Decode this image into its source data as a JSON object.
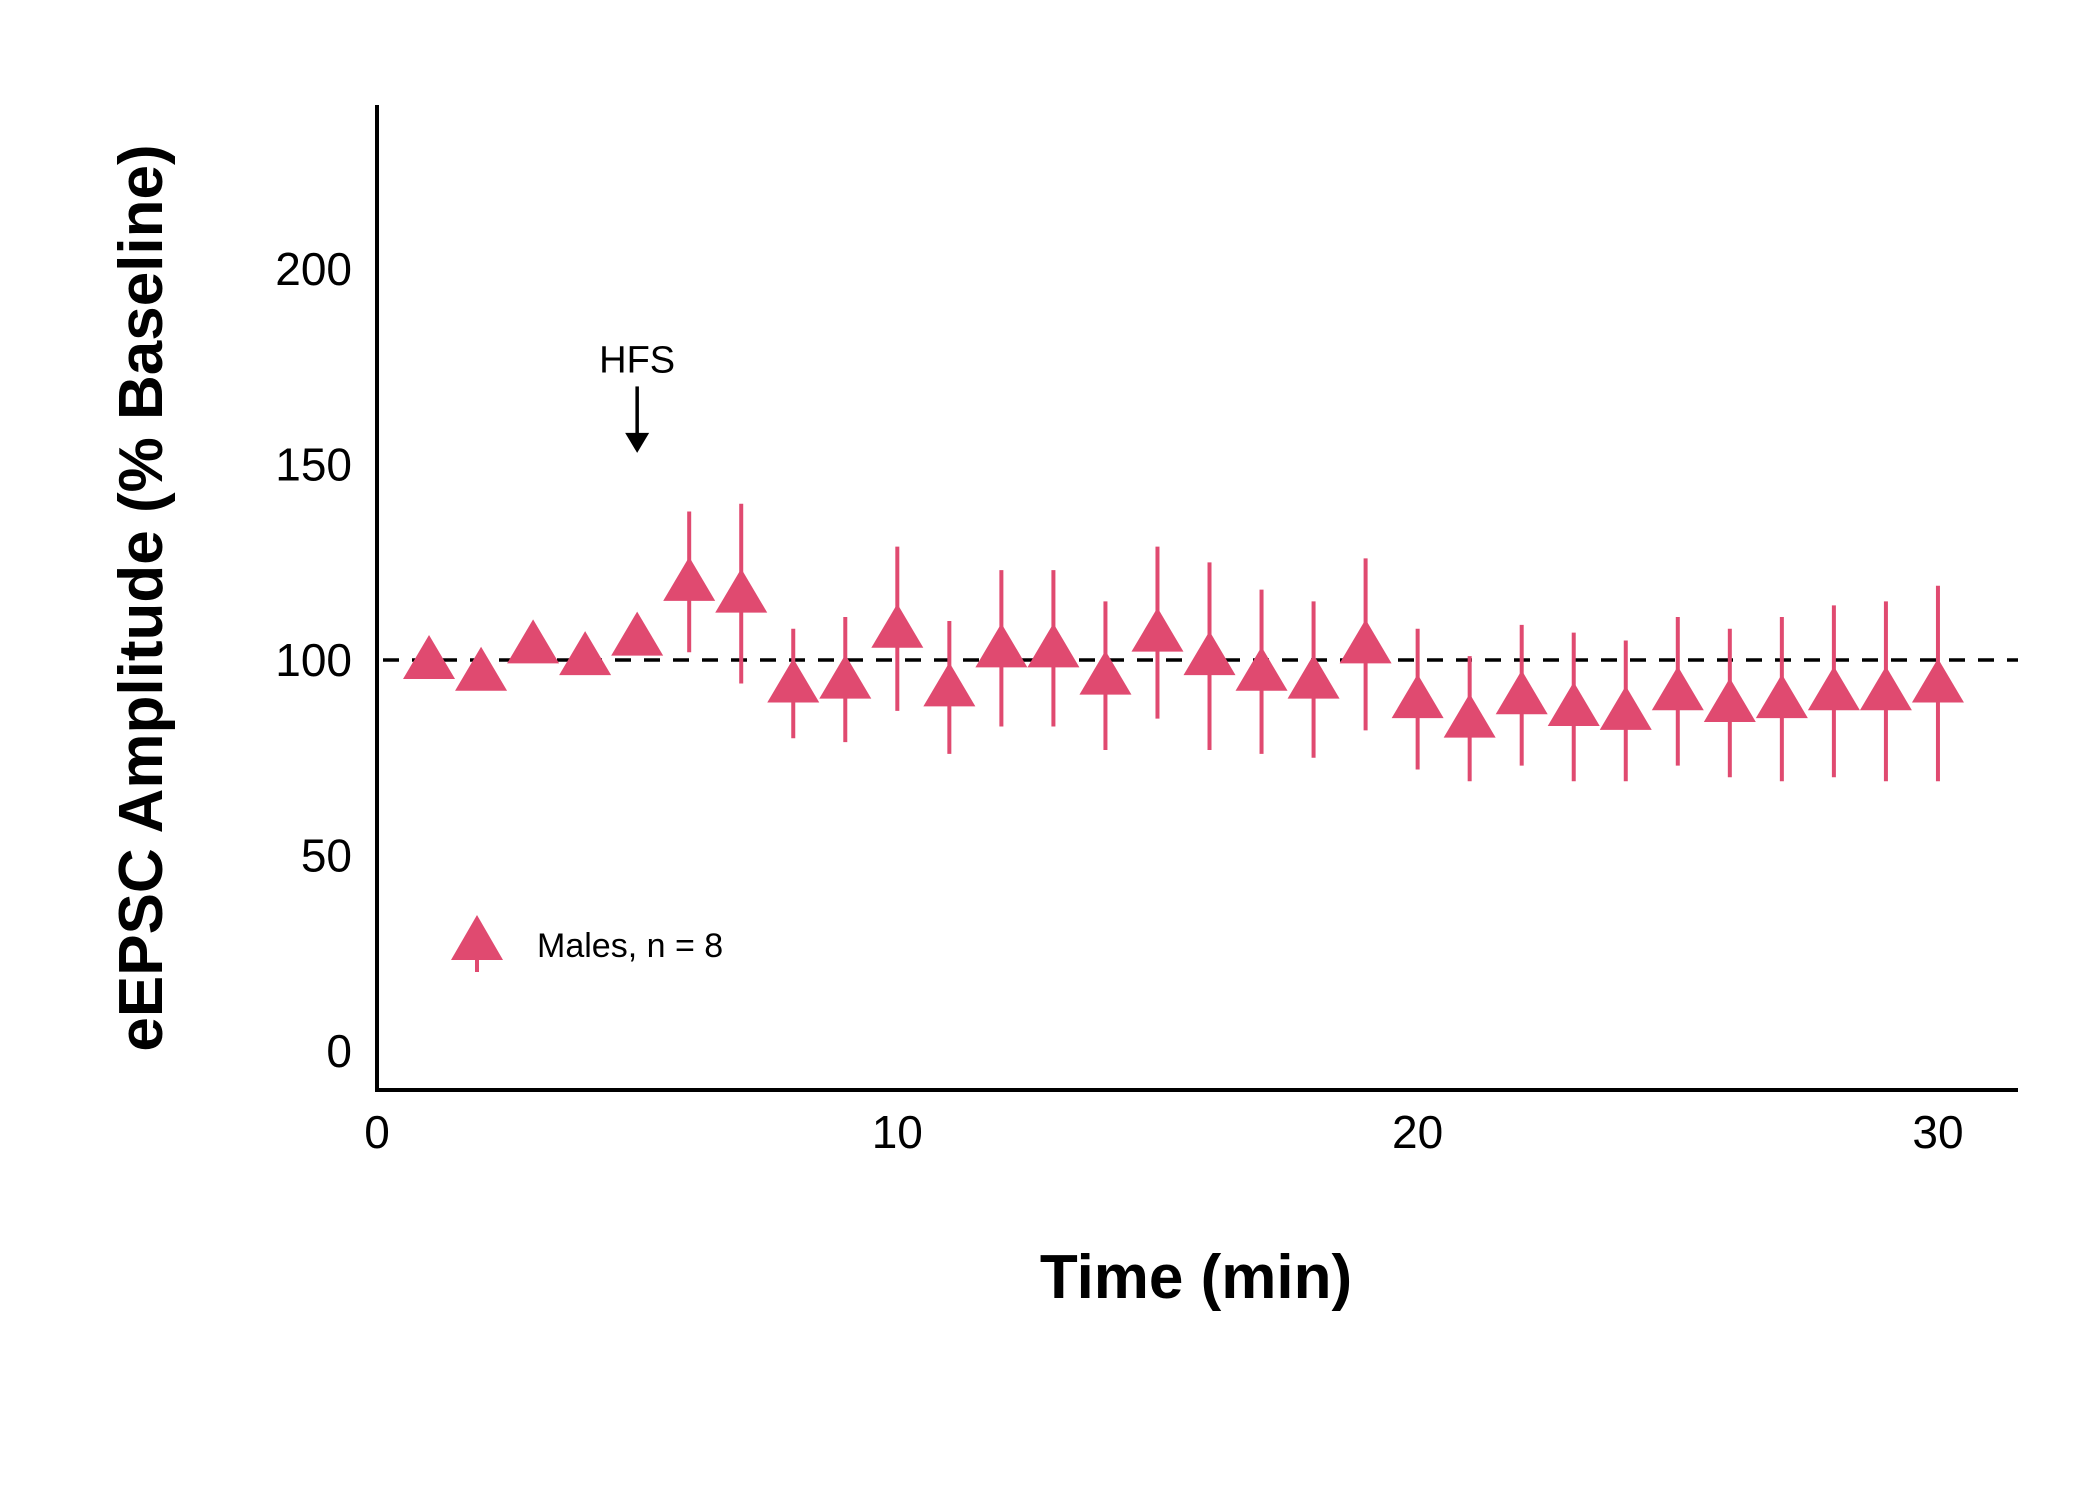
{
  "chart_data": {
    "type": "scatter",
    "title": "",
    "xlabel": "Time (min)",
    "ylabel": "eEPSC Amplitude (% Baseline)",
    "xlim": [
      0,
      31.5
    ],
    "ylim": [
      -10,
      242
    ],
    "xticks": [
      0,
      10,
      20,
      30
    ],
    "yticks": [
      0,
      50,
      100,
      150,
      200
    ],
    "grid": false,
    "legend_position": "bottom-left",
    "reference_line": {
      "y": 100,
      "style": "dashed",
      "color": "#000000"
    },
    "annotation": {
      "text": "HFS",
      "x": 5,
      "arrow_from": 170,
      "arrow_to": 153
    },
    "series": [
      {
        "name": "Males, n = 8",
        "color": "#e04a70",
        "marker": "triangle",
        "points": [
          {
            "x": 1,
            "y": 100,
            "err": 0
          },
          {
            "x": 2,
            "y": 97,
            "err": 0
          },
          {
            "x": 3,
            "y": 104,
            "err": 2
          },
          {
            "x": 4,
            "y": 101,
            "err": 0
          },
          {
            "x": 5,
            "y": 106,
            "err": 0
          },
          {
            "x": 6,
            "y": 120,
            "err": 18
          },
          {
            "x": 7,
            "y": 117,
            "err": 23
          },
          {
            "x": 8,
            "y": 94,
            "err": 14
          },
          {
            "x": 9,
            "y": 95,
            "err": 16
          },
          {
            "x": 10,
            "y": 108,
            "err": 21
          },
          {
            "x": 11,
            "y": 93,
            "err": 17
          },
          {
            "x": 12,
            "y": 103,
            "err": 20
          },
          {
            "x": 13,
            "y": 103,
            "err": 20
          },
          {
            "x": 14,
            "y": 96,
            "err": 19
          },
          {
            "x": 15,
            "y": 107,
            "err": 22
          },
          {
            "x": 16,
            "y": 101,
            "err": 24
          },
          {
            "x": 17,
            "y": 97,
            "err": 21
          },
          {
            "x": 18,
            "y": 95,
            "err": 20
          },
          {
            "x": 19,
            "y": 104,
            "err": 22
          },
          {
            "x": 20,
            "y": 90,
            "err": 18
          },
          {
            "x": 21,
            "y": 85,
            "err": 16
          },
          {
            "x": 22,
            "y": 91,
            "err": 18
          },
          {
            "x": 23,
            "y": 88,
            "err": 19
          },
          {
            "x": 24,
            "y": 87,
            "err": 18
          },
          {
            "x": 25,
            "y": 92,
            "err": 19
          },
          {
            "x": 26,
            "y": 89,
            "err": 19
          },
          {
            "x": 27,
            "y": 90,
            "err": 21
          },
          {
            "x": 28,
            "y": 92,
            "err": 22
          },
          {
            "x": 29,
            "y": 92,
            "err": 23
          },
          {
            "x": 30,
            "y": 94,
            "err": 25
          }
        ]
      }
    ]
  }
}
